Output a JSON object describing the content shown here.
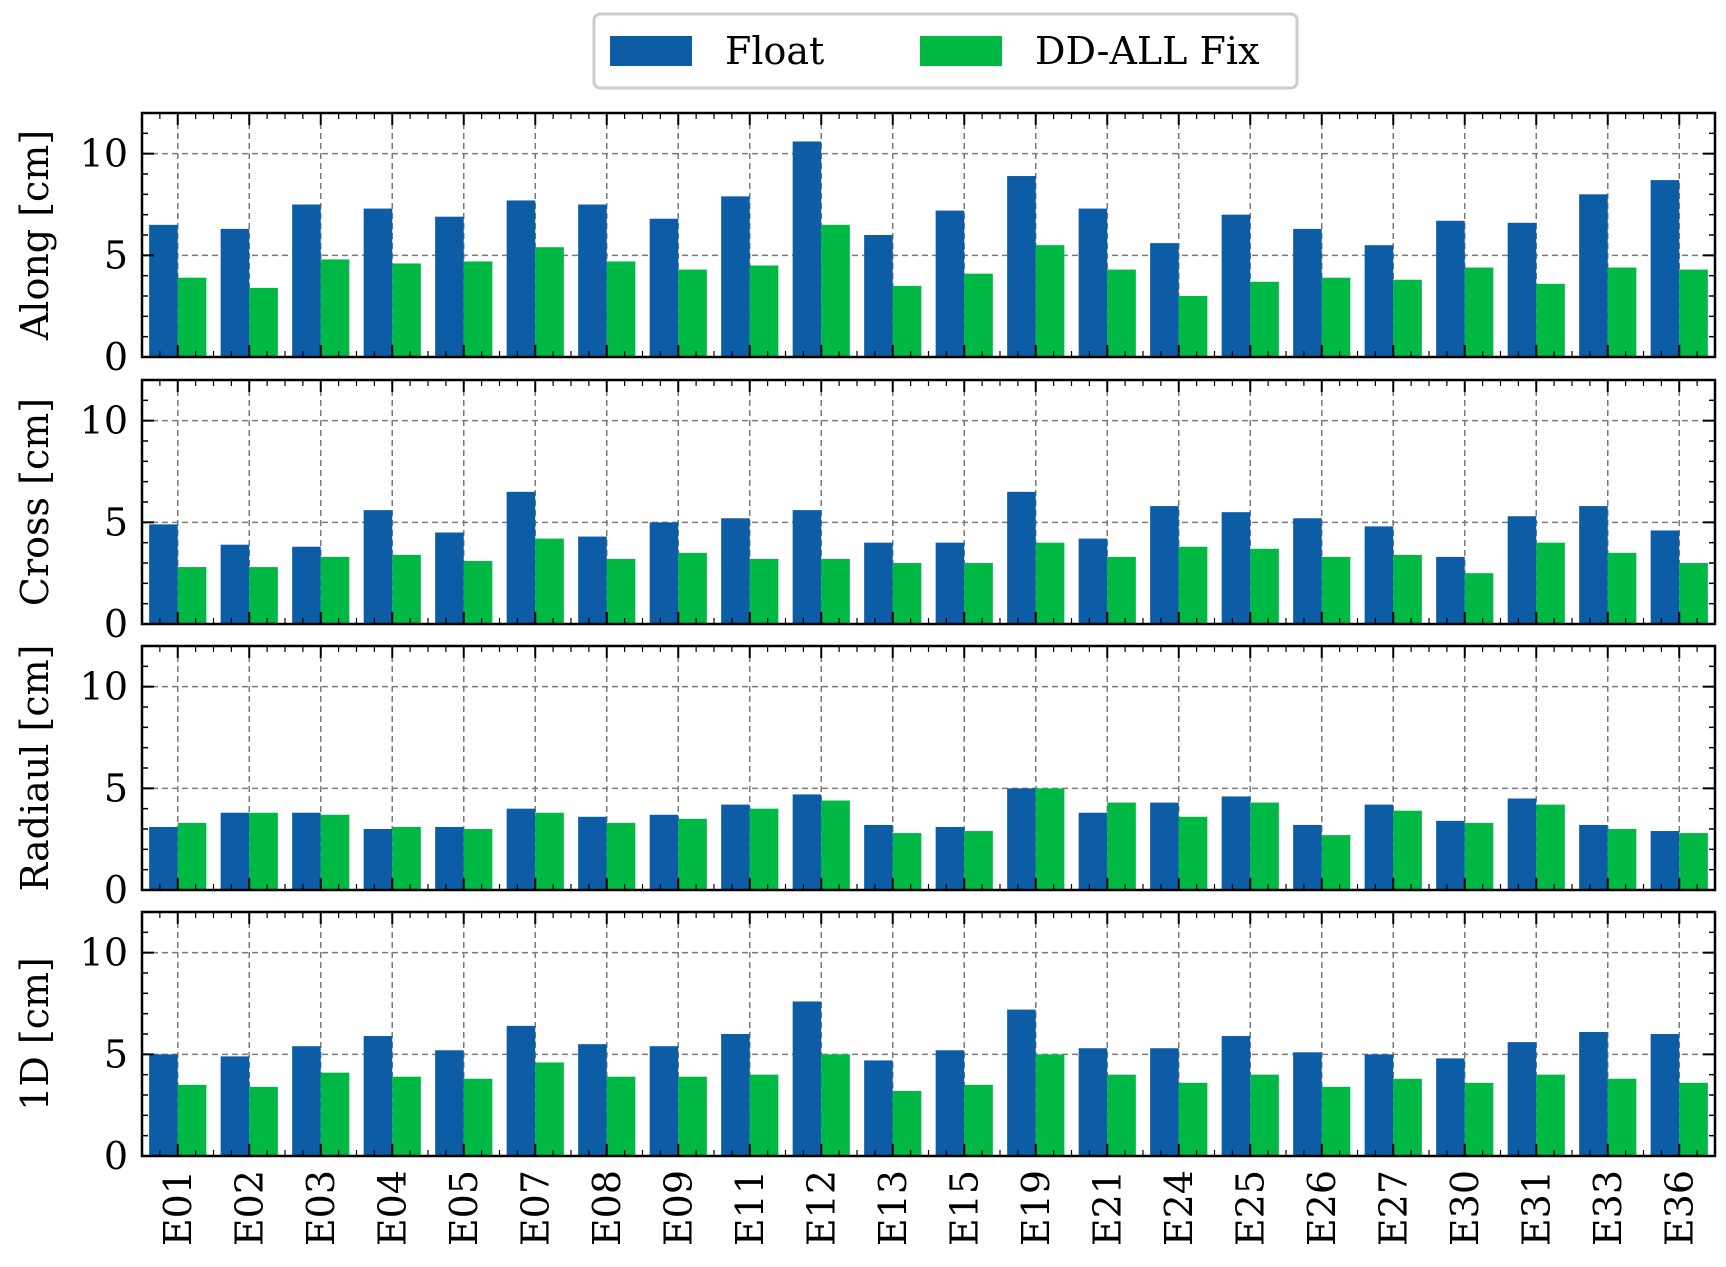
{
  "chart_data": {
    "type": "bar",
    "categories": [
      "E01",
      "E02",
      "E03",
      "E04",
      "E05",
      "E07",
      "E08",
      "E09",
      "E11",
      "E12",
      "E13",
      "E15",
      "E19",
      "E21",
      "E24",
      "E25",
      "E26",
      "E27",
      "E30",
      "E31",
      "E33",
      "E36"
    ],
    "legend": {
      "placement": "top-center",
      "entries": [
        "Float",
        "DD-ALL Fix"
      ]
    },
    "colors": {
      "Float": "#0c5da5",
      "DD-ALL Fix": "#00b945"
    },
    "grid": true,
    "panels": [
      {
        "ylabel": "Along [cm]",
        "ylim": [
          0,
          12
        ],
        "yticks": [
          0,
          5,
          10
        ],
        "series": [
          {
            "name": "Float",
            "values": [
              6.5,
              6.3,
              7.5,
              7.3,
              6.9,
              7.7,
              7.5,
              6.8,
              7.9,
              10.6,
              6.0,
              7.2,
              8.9,
              7.3,
              5.6,
              7.0,
              6.3,
              5.5,
              6.7,
              6.6,
              8.0,
              8.7
            ]
          },
          {
            "name": "DD-ALL Fix",
            "values": [
              3.9,
              3.4,
              4.8,
              4.6,
              4.7,
              5.4,
              4.7,
              4.3,
              4.5,
              6.5,
              3.5,
              4.1,
              5.5,
              4.3,
              3.0,
              3.7,
              3.9,
              3.8,
              4.4,
              3.6,
              4.4,
              4.3
            ]
          }
        ]
      },
      {
        "ylabel": "Cross [cm]",
        "ylim": [
          0,
          12
        ],
        "yticks": [
          0,
          5,
          10
        ],
        "series": [
          {
            "name": "Float",
            "values": [
              4.9,
              3.9,
              3.8,
              5.6,
              4.5,
              6.5,
              4.3,
              5.0,
              5.2,
              5.6,
              4.0,
              4.0,
              6.5,
              4.2,
              5.8,
              5.5,
              5.2,
              4.8,
              3.3,
              5.3,
              5.8,
              4.6
            ]
          },
          {
            "name": "DD-ALL Fix",
            "values": [
              2.8,
              2.8,
              3.3,
              3.4,
              3.1,
              4.2,
              3.2,
              3.5,
              3.2,
              3.2,
              3.0,
              3.0,
              4.0,
              3.3,
              3.8,
              3.7,
              3.3,
              3.4,
              2.5,
              4.0,
              3.5,
              3.0
            ]
          }
        ]
      },
      {
        "ylabel": "Radiaul [cm]",
        "ylim": [
          0,
          12
        ],
        "yticks": [
          0,
          5,
          10
        ],
        "series": [
          {
            "name": "Float",
            "values": [
              3.1,
              3.8,
              3.8,
              3.0,
              3.1,
              4.0,
              3.6,
              3.7,
              4.2,
              4.7,
              3.2,
              3.1,
              5.0,
              3.8,
              4.3,
              4.6,
              3.2,
              4.2,
              3.4,
              4.5,
              3.2,
              2.9
            ]
          },
          {
            "name": "DD-ALL Fix",
            "values": [
              3.3,
              3.8,
              3.7,
              3.1,
              3.0,
              3.8,
              3.3,
              3.5,
              4.0,
              4.4,
              2.8,
              2.9,
              5.0,
              4.3,
              3.6,
              4.3,
              2.7,
              3.9,
              3.3,
              4.2,
              3.0,
              2.8
            ]
          }
        ]
      },
      {
        "ylabel": "1D [cm]",
        "ylim": [
          0,
          12
        ],
        "yticks": [
          0,
          5,
          10
        ],
        "series": [
          {
            "name": "Float",
            "values": [
              5.0,
              4.9,
              5.4,
              5.9,
              5.2,
              6.4,
              5.5,
              5.4,
              6.0,
              7.6,
              4.7,
              5.2,
              7.2,
              5.3,
              5.3,
              5.9,
              5.1,
              5.0,
              4.8,
              5.6,
              6.1,
              6.0
            ]
          },
          {
            "name": "DD-ALL Fix",
            "values": [
              3.5,
              3.4,
              4.1,
              3.9,
              3.8,
              4.6,
              3.9,
              3.9,
              4.0,
              5.0,
              3.2,
              3.5,
              5.0,
              4.0,
              3.6,
              4.0,
              3.4,
              3.8,
              3.6,
              4.0,
              3.8,
              3.6
            ]
          }
        ]
      }
    ]
  }
}
